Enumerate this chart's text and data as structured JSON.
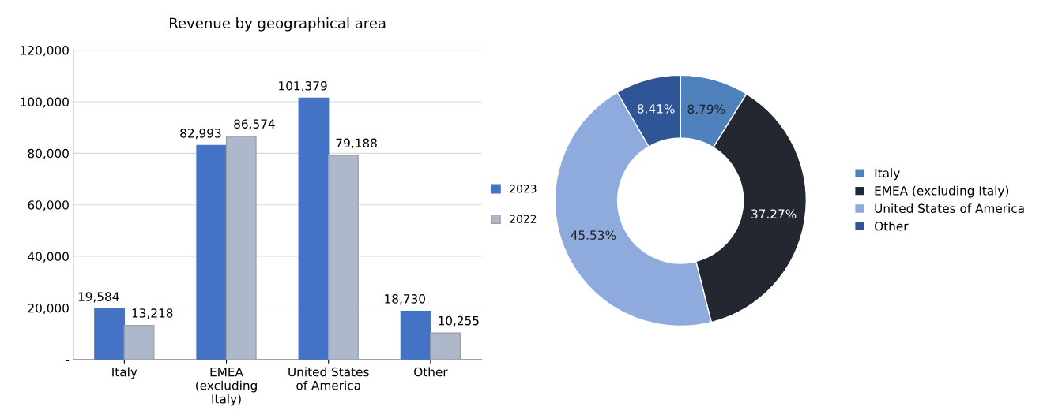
{
  "chart_data": [
    {
      "type": "bar",
      "title": "Revenue by geographical area",
      "categories": [
        "Italy",
        "EMEA (excluding Italy)",
        "United States of America",
        "Other"
      ],
      "series": [
        {
          "name": "2023",
          "color": "#4472c4",
          "values": [
            19584,
            82993,
            101379,
            18730
          ],
          "value_labels": [
            "19,584",
            "82,993",
            "101,379",
            "18,730"
          ]
        },
        {
          "name": "2022",
          "color": "#adb9ca",
          "values": [
            13218,
            86574,
            79188,
            10255
          ],
          "value_labels": [
            "13,218",
            "86,574",
            "79,188",
            "10,255"
          ]
        }
      ],
      "ylim": [
        0,
        120000
      ],
      "yticks": [
        {
          "value": 0,
          "label": "-"
        },
        {
          "value": 20000,
          "label": "20,000"
        },
        {
          "value": 40000,
          "label": "40,000"
        },
        {
          "value": 60000,
          "label": "60,000"
        },
        {
          "value": 80000,
          "label": "80,000"
        },
        {
          "value": 100000,
          "label": "100,000"
        },
        {
          "value": 120000,
          "label": "120,000"
        }
      ],
      "grid": "y",
      "legend": "right"
    },
    {
      "type": "donut",
      "categories": [
        "Italy",
        "EMEA (excluding Italy)",
        "United States of America",
        "Other"
      ],
      "values": [
        8.79,
        37.27,
        45.53,
        8.41
      ],
      "colors": [
        "#4f81bd",
        "#232730",
        "#8faadc",
        "#2f5597"
      ],
      "value_labels": [
        "8.79%",
        "37.27%",
        "45.53%",
        "8.41%"
      ],
      "legend": "right"
    }
  ]
}
